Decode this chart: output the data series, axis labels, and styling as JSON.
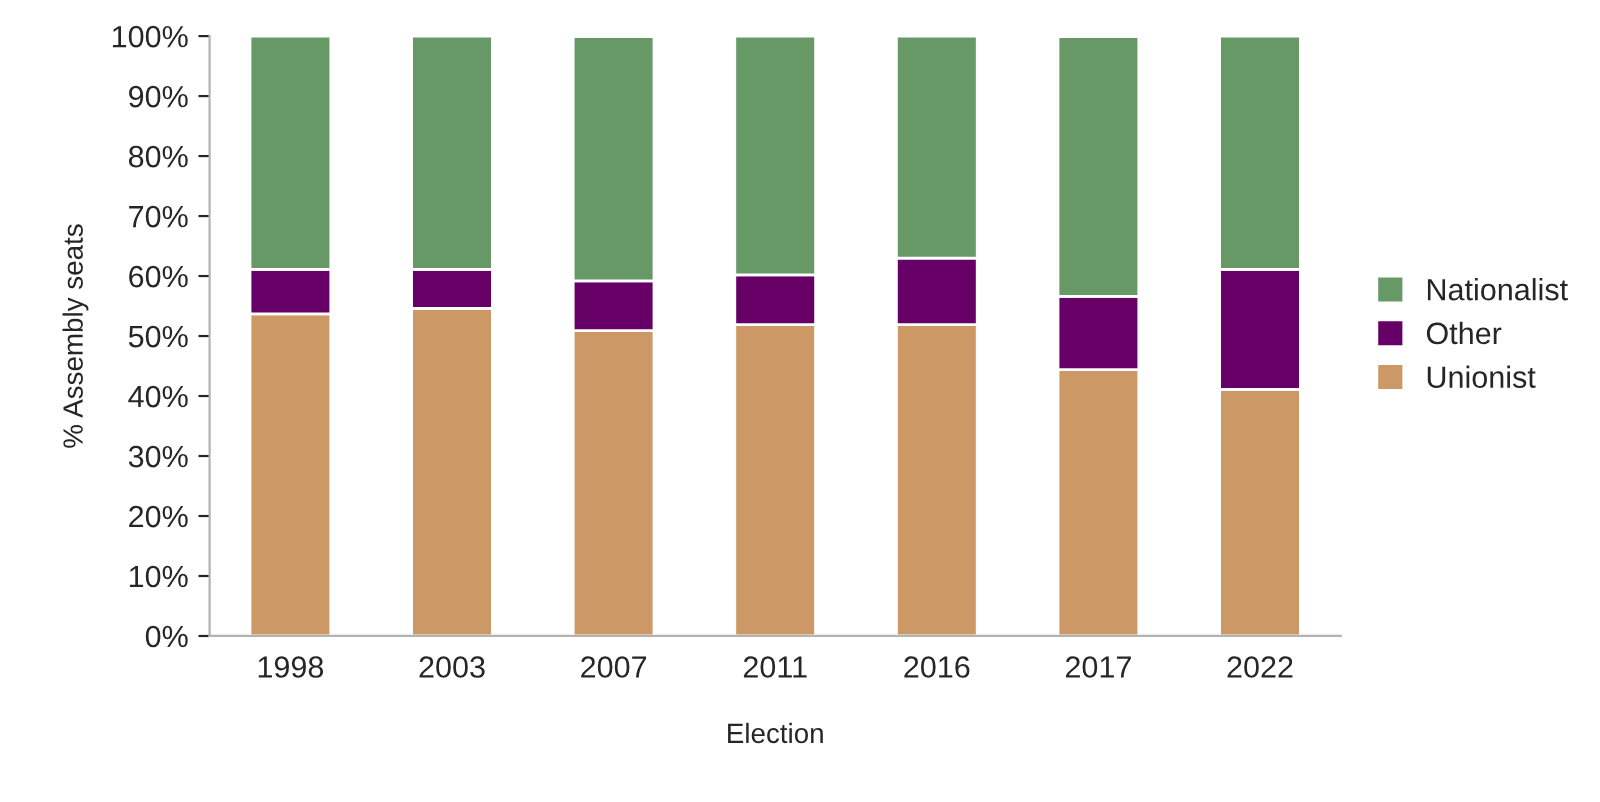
{
  "chart_data": {
    "type": "bar",
    "stacked": true,
    "xlabel": "Election",
    "ylabel": "% Assembly seats",
    "categories": [
      "1998",
      "2003",
      "2007",
      "2011",
      "2016",
      "2017",
      "2022"
    ],
    "series": [
      {
        "name": "Unionist",
        "color": "#cc9966",
        "values": [
          53.7,
          54.6,
          50.9,
          51.9,
          51.9,
          44.4,
          41.1
        ]
      },
      {
        "name": "Other",
        "color": "#660066",
        "values": [
          7.4,
          6.5,
          8.3,
          8.3,
          11.1,
          12.2,
          20.0
        ]
      },
      {
        "name": "Nationalist",
        "color": "#669966",
        "values": [
          38.9,
          38.9,
          40.7,
          39.8,
          37.0,
          43.3,
          38.9
        ]
      }
    ],
    "ylim": [
      0,
      100
    ],
    "yticks": [
      {
        "value": 0,
        "label": "0%"
      },
      {
        "value": 10,
        "label": "10%"
      },
      {
        "value": 20,
        "label": "20%"
      },
      {
        "value": 30,
        "label": "30%"
      },
      {
        "value": 40,
        "label": "40%"
      },
      {
        "value": 50,
        "label": "50%"
      },
      {
        "value": 60,
        "label": "60%"
      },
      {
        "value": 70,
        "label": "70%"
      },
      {
        "value": 80,
        "label": "80%"
      },
      {
        "value": 90,
        "label": "90%"
      },
      {
        "value": 100,
        "label": "100%"
      }
    ],
    "legend": "right"
  }
}
